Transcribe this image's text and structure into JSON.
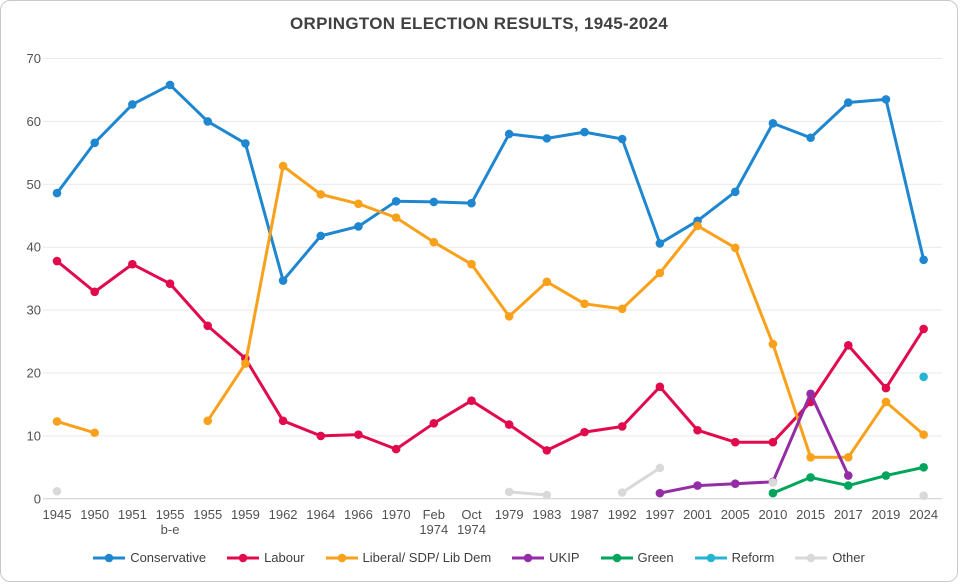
{
  "chart_data": {
    "type": "line",
    "title": "ORPINGTON ELECTION RESULTS, 1945-2024",
    "xlabel": "",
    "ylabel": "",
    "ylim": [
      0,
      70
    ],
    "y_ticks": [
      "0",
      "10",
      "20",
      "30",
      "40",
      "50",
      "60",
      "70"
    ],
    "grid": "horizontal",
    "legend_position": "bottom",
    "categories": [
      "1945",
      "1950",
      "1951",
      "1955\nb-e",
      "1955",
      "1959",
      "1962",
      "1964",
      "1966",
      "1970",
      "Feb\n1974",
      "Oct\n1974",
      "1979",
      "1983",
      "1987",
      "1992",
      "1997",
      "2001",
      "2005",
      "2010",
      "2015",
      "2017",
      "2019",
      "2024"
    ],
    "series": [
      {
        "name": "Conservative",
        "color": "#1f87d0",
        "values": [
          48.6,
          56.6,
          62.7,
          65.8,
          60.0,
          56.5,
          34.7,
          41.8,
          43.3,
          47.3,
          47.2,
          47.0,
          58.0,
          57.3,
          58.3,
          57.2,
          40.6,
          44.2,
          48.8,
          59.7,
          57.4,
          63.0,
          63.5,
          38.0
        ]
      },
      {
        "name": "Labour",
        "color": "#e10a4d",
        "values": [
          37.8,
          32.9,
          37.3,
          34.2,
          27.5,
          22.3,
          12.4,
          10.0,
          10.2,
          7.9,
          12.0,
          15.6,
          11.8,
          7.7,
          10.6,
          11.5,
          17.8,
          10.9,
          9.0,
          9.0,
          15.4,
          24.4,
          17.6,
          27.0
        ]
      },
      {
        "name": "Liberal/ SDP/ Lib Dem",
        "color": "#f9a11b",
        "values": [
          12.3,
          10.5,
          null,
          null,
          12.4,
          21.5,
          52.9,
          48.4,
          46.9,
          44.7,
          40.8,
          37.3,
          29.0,
          34.5,
          31.0,
          30.2,
          35.9,
          43.4,
          39.9,
          24.6,
          6.6,
          6.6,
          15.4,
          10.2
        ]
      },
      {
        "name": "UKIP",
        "color": "#942da5",
        "values": [
          null,
          null,
          null,
          null,
          null,
          null,
          null,
          null,
          null,
          null,
          null,
          null,
          null,
          null,
          null,
          null,
          0.9,
          2.1,
          2.4,
          2.7,
          16.7,
          3.7,
          null,
          null
        ]
      },
      {
        "name": "Green",
        "color": "#00a55c",
        "values": [
          null,
          null,
          null,
          null,
          null,
          null,
          null,
          null,
          null,
          null,
          null,
          null,
          null,
          null,
          null,
          null,
          null,
          null,
          null,
          0.9,
          3.4,
          2.1,
          3.7,
          5.0
        ]
      },
      {
        "name": "Reform",
        "color": "#27b3d2",
        "values": [
          null,
          null,
          null,
          null,
          null,
          null,
          null,
          null,
          null,
          null,
          null,
          null,
          null,
          null,
          null,
          null,
          null,
          null,
          null,
          null,
          null,
          null,
          null,
          19.4
        ]
      },
      {
        "name": "Other",
        "color": "#d9d9d9",
        "values": [
          1.2,
          null,
          null,
          null,
          null,
          null,
          null,
          null,
          null,
          null,
          null,
          null,
          1.1,
          0.6,
          null,
          1.0,
          4.9,
          null,
          null,
          2.6,
          null,
          null,
          null,
          0.5
        ]
      }
    ],
    "style": {
      "gridline_color": "#e9e9e9",
      "axis_line_color": "#cdcdcd",
      "line_width": 3,
      "marker_radius": 4.3
    }
  }
}
